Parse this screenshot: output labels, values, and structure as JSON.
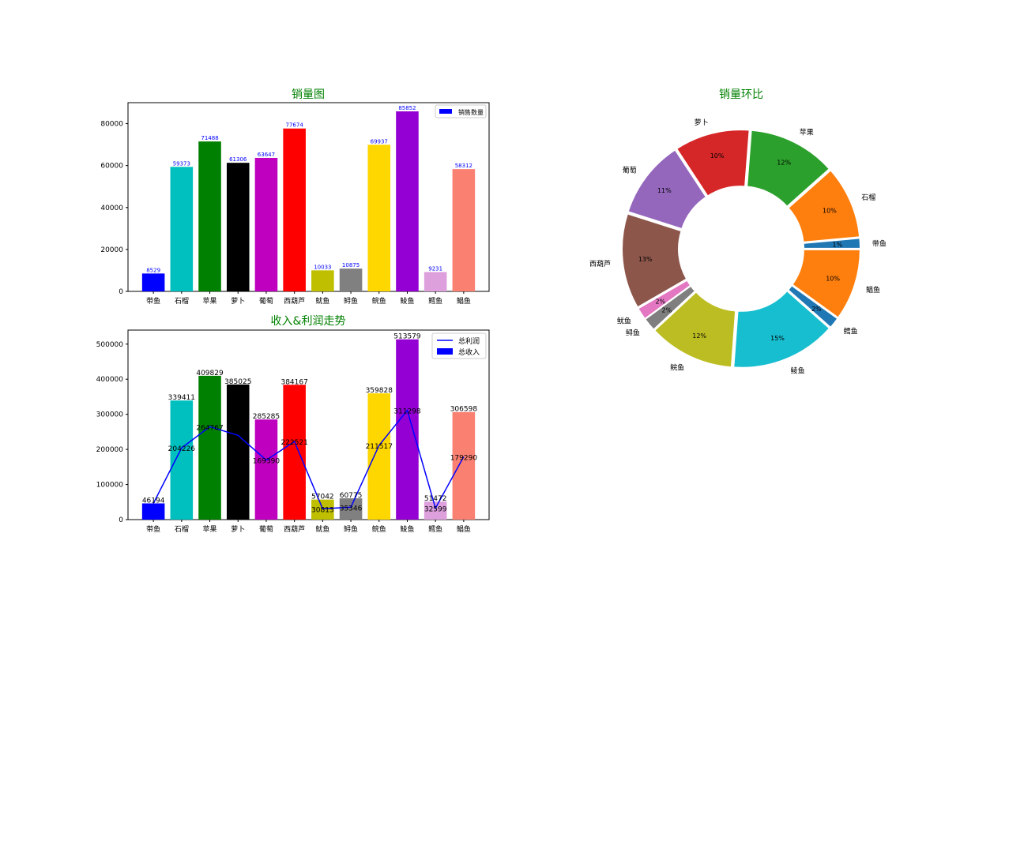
{
  "chart_data": [
    {
      "type": "bar",
      "title": "销量图",
      "title_color": "#008000",
      "categories": [
        "带鱼",
        "石榴",
        "苹果",
        "萝卜",
        "葡萄",
        "西葫芦",
        "鱿鱼",
        "鲟鱼",
        "鲩鱼",
        "鲮鱼",
        "鳕鱼",
        "鲳鱼"
      ],
      "series": [
        {
          "name": "销售数量",
          "values": [
            8529,
            59373,
            71488,
            61306,
            63647,
            77674,
            10033,
            10875,
            69937,
            85852,
            9231,
            58312
          ]
        }
      ],
      "bar_colors": [
        "#0000ff",
        "#00bfbf",
        "#008000",
        "#000000",
        "#bf00bf",
        "#ff0000",
        "#bfbf00",
        "#808080",
        "#ffd700",
        "#9400d3",
        "#dda0dd",
        "#fa8072"
      ],
      "label_color": "#0000ff",
      "ylim": [
        0,
        90000
      ],
      "yticks": [
        0,
        20000,
        40000,
        60000,
        80000
      ],
      "legend_position": "upper right",
      "grid": false
    },
    {
      "type": "bar+line",
      "title": "收入&利润走势",
      "title_color": "#008000",
      "categories": [
        "带鱼",
        "石榴",
        "苹果",
        "萝卜",
        "葡萄",
        "西葫芦",
        "鱿鱼",
        "鲟鱼",
        "鲩鱼",
        "鲮鱼",
        "鳕鱼",
        "鲳鱼"
      ],
      "series": [
        {
          "name": "总利润",
          "kind": "line",
          "color": "#0000ff",
          "values": [
            46194,
            204226,
            264767,
            240000,
            169390,
            222521,
            30813,
            35346,
            211517,
            311298,
            32599,
            179290
          ]
        },
        {
          "name": "总收入",
          "kind": "bar",
          "values": [
            46194,
            339411,
            409829,
            385025,
            285285,
            384167,
            57042,
            60775,
            359828,
            513579,
            51472,
            306598
          ]
        }
      ],
      "profit_labels": [
        "",
        "204226",
        "264767",
        "",
        "169390",
        "222521",
        "30813",
        "35346",
        "211517",
        "311298",
        "32599",
        "179290"
      ],
      "bar_colors": [
        "#0000ff",
        "#00bfbf",
        "#008000",
        "#000000",
        "#bf00bf",
        "#ff0000",
        "#bfbf00",
        "#808080",
        "#ffd700",
        "#9400d3",
        "#dda0dd",
        "#fa8072"
      ],
      "ylim": [
        0,
        540000
      ],
      "yticks": [
        0,
        100000,
        200000,
        300000,
        400000,
        500000
      ],
      "legend_position": "upper right",
      "grid": false
    },
    {
      "type": "pie",
      "donut": true,
      "title": "销量环比",
      "title_color": "#008000",
      "start_angle_deg": 0,
      "counterclockwise": true,
      "slices": [
        {
          "label": "带鱼",
          "value": 8529,
          "pct": "1%",
          "color": "#1f77b4"
        },
        {
          "label": "石榴",
          "value": 59373,
          "pct": "10%",
          "color": "#ff7f0e"
        },
        {
          "label": "苹果",
          "value": 71488,
          "pct": "12%",
          "color": "#2ca02c"
        },
        {
          "label": "萝卜",
          "value": 61306,
          "pct": "10%",
          "color": "#d62728"
        },
        {
          "label": "葡萄",
          "value": 63647,
          "pct": "11%",
          "color": "#9467bd"
        },
        {
          "label": "西葫芦",
          "value": 77674,
          "pct": "13%",
          "color": "#8c564b"
        },
        {
          "label": "鱿鱼",
          "value": 10033,
          "pct": "2%",
          "color": "#e377c2"
        },
        {
          "label": "鲟鱼",
          "value": 10875,
          "pct": "2%",
          "color": "#7f7f7f"
        },
        {
          "label": "鲩鱼",
          "value": 69937,
          "pct": "12%",
          "color": "#bcbd22"
        },
        {
          "label": "鲮鱼",
          "value": 85852,
          "pct": "15%",
          "color": "#17becf"
        },
        {
          "label": "鳕鱼",
          "value": 9231,
          "pct": "2%",
          "color": "#1f77b4"
        },
        {
          "label": "鲳鱼",
          "value": 58312,
          "pct": "10%",
          "color": "#ff7f0e"
        }
      ]
    }
  ]
}
